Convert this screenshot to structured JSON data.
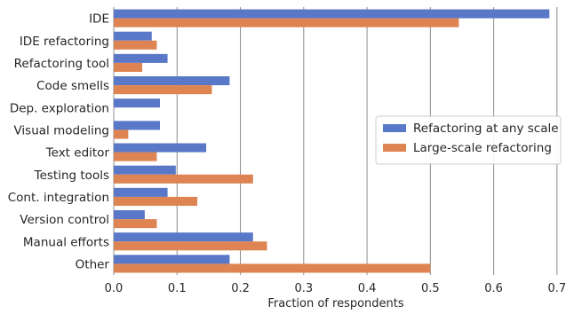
{
  "chart_data": {
    "type": "bar",
    "orientation": "horizontal",
    "categories": [
      "IDE",
      "IDE refactoring",
      "Refactoring tool",
      "Code smells",
      "Dep. exploration",
      "Visual modeling",
      "Text editor",
      "Testing tools",
      "Cont. integration",
      "Version control",
      "Manual efforts",
      "Other"
    ],
    "series": [
      {
        "name": "Refactoring at any scale",
        "color": "#5a78c8",
        "values": [
          0.688,
          0.06,
          0.085,
          0.183,
          0.073,
          0.073,
          0.146,
          0.098,
          0.085,
          0.049,
          0.22,
          0.183
        ]
      },
      {
        "name": "Large-scale refactoring",
        "color": "#dd8452",
        "values": [
          0.545,
          0.068,
          0.045,
          0.155,
          0.0,
          0.023,
          0.068,
          0.22,
          0.132,
          0.068,
          0.242,
          0.5
        ]
      }
    ],
    "xlabel": "Fraction of respondents",
    "ylabel": "",
    "xlim": [
      0,
      0.71
    ],
    "xticks": [
      "0.0",
      "0.1",
      "0.2",
      "0.3",
      "0.4",
      "0.5",
      "0.6",
      "0.7"
    ],
    "grid": "vertical",
    "legend_position": "center-right"
  }
}
